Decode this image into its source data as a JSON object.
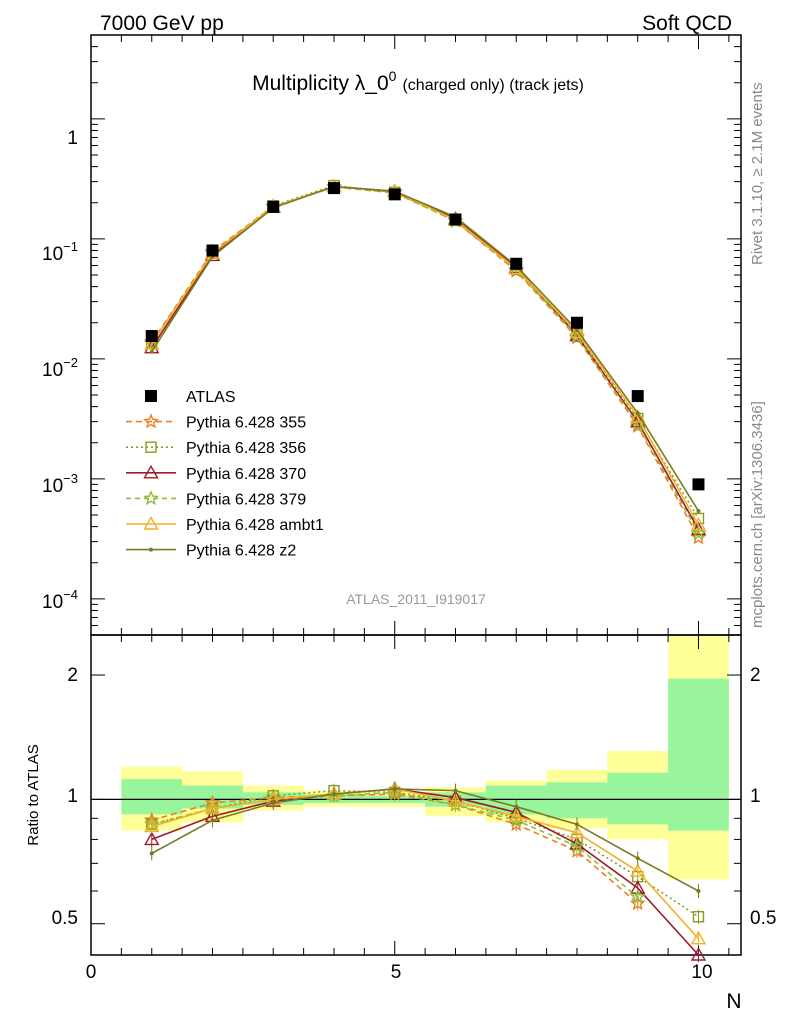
{
  "header": {
    "left": "7000 GeV pp",
    "right": "Soft QCD"
  },
  "title": {
    "main": "Multiplicity λ_0",
    "superscript": "0",
    "suffix": "(charged only) (track jets)"
  },
  "side_labels": {
    "rivet": "Rivet 3.1.10, ≥ 2.1M events",
    "mcplots": "mcplots.cern.ch [arXiv:1306.3436]"
  },
  "watermark": "ATLAS_2011_I919017",
  "axes": {
    "xlabel": "N",
    "ratio_ylabel": "Ratio to ATLAS",
    "x_ticks": [
      "0",
      "5",
      "10"
    ],
    "main_y_ticks": [
      {
        "base": "10",
        "exp": "−4"
      },
      {
        "base": "10",
        "exp": "−3"
      },
      {
        "base": "10",
        "exp": "−2"
      },
      {
        "base": "10",
        "exp": "−1"
      },
      {
        "base": "1",
        "exp": ""
      }
    ],
    "ratio_y_ticks": [
      "0.5",
      "1",
      "2"
    ]
  },
  "chart_data": {
    "type": "line",
    "x_range": [
      0,
      10.7
    ],
    "main": {
      "yscale": "log",
      "ylim": [
        5e-05,
        5
      ],
      "x": [
        1,
        2,
        3,
        4,
        5,
        6,
        7,
        8,
        9,
        10
      ],
      "data": {
        "name": "ATLAS",
        "y": [
          0.0155,
          0.08,
          0.185,
          0.265,
          0.235,
          0.145,
          0.062,
          0.02,
          0.0049,
          0.0009
        ]
      }
    },
    "ratio": {
      "yscale": "log",
      "ylim": [
        0.42,
        2.5
      ],
      "band_inner": [
        [
          0.92,
          1.12
        ],
        [
          0.95,
          1.08
        ],
        [
          0.97,
          1.04
        ],
        [
          0.98,
          1.03
        ],
        [
          0.98,
          1.02
        ],
        [
          0.96,
          1.04
        ],
        [
          0.92,
          1.08
        ],
        [
          0.9,
          1.1
        ],
        [
          0.87,
          1.16
        ],
        [
          0.84,
          1.96
        ]
      ],
      "band_outer": [
        [
          0.84,
          1.2
        ],
        [
          0.88,
          1.17
        ],
        [
          0.94,
          1.08
        ],
        [
          0.96,
          1.05
        ],
        [
          0.96,
          1.04
        ],
        [
          0.91,
          1.07
        ],
        [
          0.88,
          1.11
        ],
        [
          0.85,
          1.18
        ],
        [
          0.8,
          1.31
        ],
        [
          0.64,
          2.5
        ]
      ]
    },
    "series": [
      {
        "name": "Pythia 6.428 355",
        "color": "#ef7f22",
        "dash": "6,4",
        "marker": "star",
        "ratio": [
          0.89,
          0.98,
          1.01,
          1.02,
          1.03,
          0.97,
          0.87,
          0.75,
          0.56,
          0.36
        ]
      },
      {
        "name": "Pythia 6.428 356",
        "color": "#8a9a1e",
        "dash": "2,3",
        "marker": "open-square",
        "ratio": [
          0.87,
          0.95,
          1.02,
          1.05,
          1.04,
          0.99,
          0.9,
          0.8,
          0.65,
          0.52
        ]
      },
      {
        "name": "Pythia 6.428 370",
        "color": "#9e1a2e",
        "dash": "",
        "marker": "open-triangle",
        "ratio": [
          0.8,
          0.91,
          0.99,
          1.03,
          1.06,
          1.01,
          0.93,
          0.78,
          0.61,
          0.42
        ]
      },
      {
        "name": "Pythia 6.428 379",
        "color": "#8cbf3a",
        "dash": "5,4",
        "marker": "star",
        "ratio": [
          0.87,
          0.95,
          1.0,
          1.02,
          1.04,
          0.97,
          0.89,
          0.77,
          0.58,
          0.39
        ]
      },
      {
        "name": "Pythia 6.428 ambt1",
        "color": "#f3b128",
        "dash": "",
        "marker": "open-triangle",
        "ratio": [
          0.86,
          0.95,
          1.0,
          1.03,
          1.06,
          0.99,
          0.91,
          0.83,
          0.67,
          0.46
        ]
      },
      {
        "name": "Pythia 6.428 z2",
        "color": "#7a7a22",
        "dash": "",
        "marker": "dot",
        "ratio": [
          0.74,
          0.89,
          0.98,
          1.03,
          1.06,
          1.05,
          0.96,
          0.87,
          0.72,
          0.6
        ]
      }
    ]
  }
}
